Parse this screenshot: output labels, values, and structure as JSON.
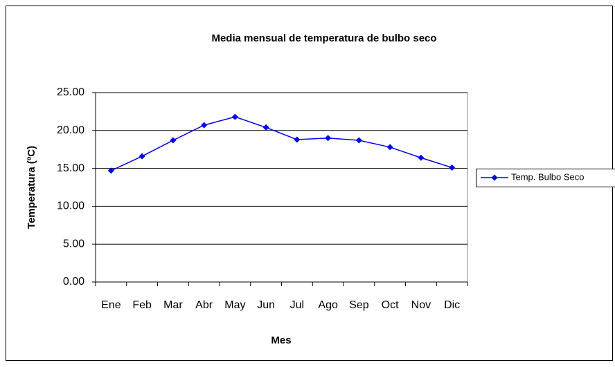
{
  "chart_data": {
    "type": "line",
    "title": "Media mensual de temperatura de bulbo seco",
    "x_label": "Mes",
    "y_label": "Temperatura (ºC)",
    "categories": [
      "Ene",
      "Feb",
      "Mar",
      "Abr",
      "May",
      "Jun",
      "Jul",
      "Ago",
      "Sep",
      "Oct",
      "Nov",
      "Dic"
    ],
    "series": [
      {
        "name": "Temp. Bulbo Seco",
        "color": "#0000ff",
        "values": [
          14.7,
          16.6,
          18.7,
          20.7,
          21.8,
          20.4,
          18.8,
          19.0,
          18.7,
          17.8,
          16.4,
          15.1
        ]
      }
    ],
    "ylim": [
      0,
      25
    ],
    "yticks": [
      {
        "value": 0,
        "label": "0.00"
      },
      {
        "value": 5,
        "label": "5.00"
      },
      {
        "value": 10,
        "label": "10.00"
      },
      {
        "value": 15,
        "label": "15.00"
      },
      {
        "value": 20,
        "label": "20.00"
      },
      {
        "value": 25,
        "label": "25.00"
      }
    ],
    "grid": true,
    "legend": "right"
  }
}
